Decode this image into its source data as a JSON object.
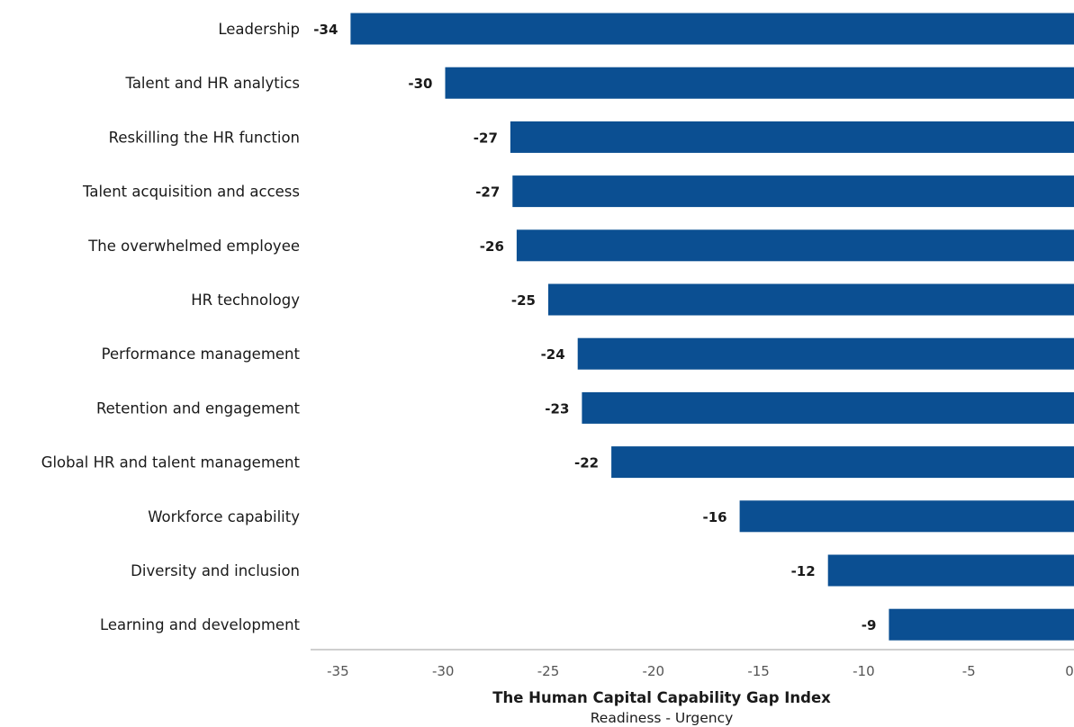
{
  "chart_data": {
    "type": "bar",
    "orientation": "horizontal",
    "categories": [
      "Leadership",
      "Talent and HR analytics",
      "Reskilling the HR function",
      "Talent acquisition and access",
      "The overwhelmed employee",
      "HR technology",
      "Performance management",
      "Retention and engagement",
      "Global HR and talent management",
      "Workforce capability",
      "Diversity and inclusion",
      "Learning and development"
    ],
    "values": [
      -34.4,
      -29.9,
      -26.8,
      -26.7,
      -26.5,
      -25.0,
      -23.6,
      -23.4,
      -22.0,
      -15.9,
      -11.7,
      -8.8
    ],
    "value_labels": [
      "-34",
      "-30",
      "-27",
      "-27",
      "-26",
      "-25",
      "-24",
      "-23",
      "-22",
      "-16",
      "-12",
      "-9"
    ],
    "xlim": [
      -36.3,
      0
    ],
    "xticks": [
      -35,
      -30,
      -25,
      -20,
      -15,
      -10,
      -5,
      0
    ],
    "xtick_labels": [
      "-35",
      "-30",
      "-25",
      "-20",
      "-15",
      "-10",
      "-5",
      "0"
    ],
    "xlabel": "The Human Capital Capability Gap Index",
    "xlabel_sub": "Readiness - Urgency",
    "bar_color": "#0b4f92",
    "axis_color": "#bfbfbf",
    "grid": false
  }
}
